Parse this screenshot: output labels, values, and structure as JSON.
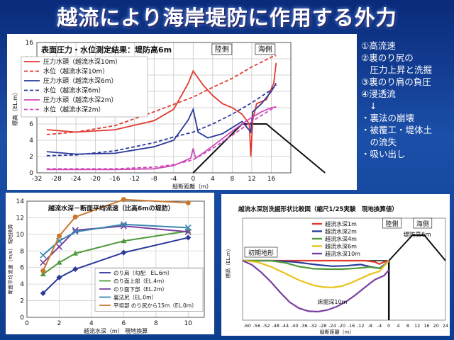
{
  "page": {
    "title": "越流により海岸堤防に作用する外力"
  },
  "notes": {
    "items": [
      "①高流速",
      "②裏のり尻の",
      "　圧力上昇と洗掘",
      "③裏のり肩の負圧",
      "④浸透流"
    ],
    "arrow": "↓",
    "effects": [
      "・裏法の崩壊",
      "・被覆工・堤体土",
      "　の流失",
      "・吸い出し"
    ]
  },
  "colors": {
    "red": "#e03a2f",
    "blue": "#2a3a9a",
    "pink": "#d048b8",
    "orange": "#c8782e",
    "green": "#4e9a3a",
    "purple": "#7a3fa0",
    "yellow": "#e8c21a",
    "dark": "#111111"
  },
  "chart_data": [
    {
      "type": "line",
      "title": "表面圧力・水位測定結果：堤防高6m",
      "xlabel": "縦断距離（m）",
      "ylabel": "標高（EL.m）",
      "xlim": [
        -32,
        20
      ],
      "ylim": [
        0,
        16
      ],
      "xticks": [
        -32,
        -28,
        -24,
        -20,
        -16,
        -12,
        -8,
        -4,
        0,
        4,
        8,
        12,
        16
      ],
      "yticks": [
        0,
        2,
        4,
        6,
        8,
        10,
        12,
        14,
        16
      ],
      "labels": {
        "land": "陸側",
        "sea": "海側"
      },
      "series": [
        {
          "name": "圧力水頭（越流水深10m）",
          "color": "#e03a2f",
          "dash": false,
          "x": [
            -30,
            -24,
            -16,
            -8,
            -4,
            -1,
            0,
            2,
            4,
            6,
            8,
            10,
            11.5,
            11.8,
            12.2,
            13,
            15,
            16.5,
            17
          ],
          "y": [
            5.3,
            5.0,
            5.3,
            6.4,
            7.8,
            11.0,
            12.5,
            10.8,
            9.5,
            8.5,
            8.0,
            7.2,
            6.0,
            2.0,
            6.5,
            8.5,
            9.0,
            11.0,
            13.5
          ]
        },
        {
          "name": "水位（越流水深10m）",
          "color": "#e03a2f",
          "dash": true,
          "x": [
            -30,
            -24,
            -16,
            -8,
            -4,
            0,
            4,
            8,
            12,
            16,
            17
          ],
          "y": [
            4.7,
            5.0,
            5.8,
            7.5,
            8.4,
            9.3,
            10.5,
            11.6,
            13.0,
            14.2,
            14.4
          ]
        },
        {
          "name": "圧力水頭（越流水深6m）",
          "color": "#2a3a9a",
          "dash": false,
          "x": [
            -30,
            -24,
            -16,
            -8,
            -4,
            -1,
            0,
            1,
            3,
            6,
            10,
            11.8,
            12.2,
            14,
            16,
            17
          ],
          "y": [
            2.6,
            2.3,
            2.4,
            3.2,
            4.0,
            6.5,
            7.8,
            5.0,
            4.3,
            4.8,
            6.3,
            5.0,
            7.5,
            8.5,
            10.0,
            11.0
          ]
        },
        {
          "name": "水位（越流水深6m）",
          "color": "#2a3a9a",
          "dash": true,
          "x": [
            -30,
            -24,
            -16,
            -8,
            -4,
            0,
            4,
            8,
            12,
            16,
            17
          ],
          "y": [
            2.1,
            2.2,
            2.7,
            3.7,
            4.4,
            5.0,
            6.0,
            7.2,
            8.6,
            10.2,
            10.8
          ]
        },
        {
          "name": "圧力水頭（越流水深2m）",
          "color": "#d048b8",
          "dash": false,
          "x": [
            -30,
            -24,
            -16,
            -8,
            -4,
            -0.5,
            0,
            0.5,
            2,
            6,
            10,
            12,
            14,
            16,
            17
          ],
          "y": [
            0.4,
            0.4,
            0.4,
            0.5,
            0.9,
            1.8,
            3.0,
            1.8,
            2.4,
            4.2,
            6.0,
            6.8,
            7.5,
            8.0,
            8.1
          ]
        },
        {
          "name": "水位（越流水深2m）",
          "color": "#d048b8",
          "dash": true,
          "x": [
            -30,
            -24,
            -16,
            -8,
            -4,
            0,
            4,
            8,
            12,
            16,
            17
          ],
          "y": [
            0.5,
            0.5,
            0.5,
            0.7,
            1.0,
            1.6,
            3.0,
            4.6,
            6.3,
            7.8,
            8.1
          ]
        }
      ],
      "dike": {
        "x": [
          0,
          10,
          15,
          27
        ],
        "y": [
          0,
          6,
          6,
          0
        ]
      }
    },
    {
      "type": "line",
      "title": "越流水深－断面平均流速（比高6mの堤防）",
      "xlabel": "越流水深（m） 現地換算",
      "ylabel": "断面平均流速（m/s） 現地換算",
      "xlim": [
        0,
        11
      ],
      "ylim": [
        0,
        14
      ],
      "xticks": [
        0,
        2,
        4,
        6,
        8,
        10
      ],
      "yticks": [
        0,
        2,
        4,
        6,
        8,
        10,
        12,
        14
      ],
      "series": [
        {
          "name": "のり肩（勾配　EL.6m）",
          "color": "#2a3a9a",
          "marker": "diamond",
          "x": [
            1,
            2,
            3,
            6,
            10
          ],
          "y": [
            2.9,
            4.8,
            5.8,
            7.8,
            9.6
          ]
        },
        {
          "name": "のり面上部（EL.4m）",
          "color": "#4e9a3a",
          "marker": "triangle",
          "x": [
            1,
            2,
            3,
            6,
            10
          ],
          "y": [
            5.2,
            6.6,
            7.7,
            9.2,
            10.4
          ]
        },
        {
          "name": "のり面下部（EL.2m）",
          "color": "#7a3fa0",
          "marker": "x",
          "x": [
            1,
            2,
            3,
            6,
            10
          ],
          "y": [
            6.6,
            8.5,
            10.5,
            11.0,
            10.3
          ]
        },
        {
          "name": "裏法尻（EL.0m）",
          "color": "#3a86b0",
          "marker": "x",
          "x": [
            1,
            2,
            3,
            6,
            10
          ],
          "y": [
            7.5,
            9.2,
            10.3,
            11.2,
            10.8
          ]
        },
        {
          "name": "平坦部 のり尻から15m（EL.0m）",
          "color": "#c8782e",
          "marker": "circle",
          "x": [
            1,
            2,
            3,
            6,
            10
          ],
          "y": [
            5.6,
            9.8,
            12.1,
            14.2,
            13.8
          ]
        }
      ]
    },
    {
      "type": "line",
      "title": "越流水深別洗掘形状比較図（縮尺1/25実験　現地換算値）",
      "xlabel": "縦断距離（m）",
      "ylabel": "標高（EL.m）",
      "xlim": [
        -62,
        24
      ],
      "ylim": [
        -14,
        10
      ],
      "xticks": [
        -60,
        -56,
        -52,
        -48,
        -44,
        -40,
        -36,
        -32,
        -28,
        -24,
        -20,
        -16,
        -12,
        -8,
        -4,
        0,
        4,
        8,
        12,
        16,
        20,
        24
      ],
      "labels": {
        "initial": "初期地形",
        "land": "陸側",
        "sea": "海側",
        "dike": "堤防高6m",
        "scour": "床掘深10m"
      },
      "series": [
        {
          "name": "越流水深1m",
          "color": "#e03a2f",
          "x": [
            -62,
            -40,
            -30,
            -20,
            -10,
            -6,
            -4,
            -2,
            0
          ],
          "y": [
            0,
            0,
            0,
            0,
            0,
            -0.3,
            -0.8,
            -0.3,
            0
          ]
        },
        {
          "name": "越流水深2m",
          "color": "#2a3a9a",
          "x": [
            -62,
            -50,
            -40,
            -30,
            -24,
            -18,
            -12,
            -8,
            -4,
            -2,
            0
          ],
          "y": [
            0,
            0,
            -0.3,
            -1.0,
            -1.3,
            -1.2,
            -0.9,
            -1.4,
            -1.8,
            -1.0,
            0
          ]
        },
        {
          "name": "越流水深4m",
          "color": "#4e9a3a",
          "x": [
            -62,
            -50,
            -44,
            -38,
            -32,
            -26,
            -20,
            -14,
            -8,
            -4,
            -2,
            0
          ],
          "y": [
            0,
            0,
            -0.5,
            -1.4,
            -1.9,
            -2.0,
            -2.0,
            -1.8,
            -1.5,
            -1.8,
            -1.2,
            0
          ]
        },
        {
          "name": "越流水深6m",
          "color": "#e8c21a",
          "x": [
            -62,
            -56,
            -50,
            -44,
            -38,
            -32,
            -28,
            -24,
            -20,
            -16,
            -12,
            -8,
            -4,
            -2,
            0
          ],
          "y": [
            0,
            -0.3,
            -1.4,
            -3.0,
            -4.6,
            -5.8,
            -6.2,
            -6.3,
            -6.0,
            -5.2,
            -4.2,
            -3.2,
            -2.5,
            -1.2,
            0
          ]
        },
        {
          "name": "越流水深10m",
          "color": "#7a3fa0",
          "x": [
            -62,
            -58,
            -54,
            -50,
            -46,
            -42,
            -38,
            -34,
            -30,
            -26,
            -22,
            -18,
            -14,
            -10,
            -6,
            -2,
            0
          ],
          "y": [
            0,
            -1.0,
            -2.8,
            -5.0,
            -7.5,
            -9.8,
            -11.2,
            -11.9,
            -12.0,
            -11.6,
            -10.8,
            -9.6,
            -8.0,
            -6.2,
            -4.5,
            -3.5,
            -2.2
          ]
        }
      ],
      "initial_ground": {
        "x": [
          -62,
          0
        ],
        "y": [
          0,
          0
        ]
      },
      "wall": {
        "x": [
          0,
          0
        ],
        "y": [
          -14,
          0
        ]
      },
      "dike": {
        "x": [
          0,
          10,
          15,
          24
        ],
        "y": [
          0,
          6,
          6,
          0
        ]
      }
    }
  ]
}
